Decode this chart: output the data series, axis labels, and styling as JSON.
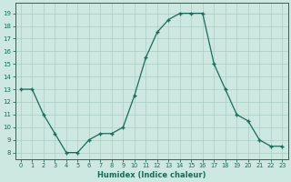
{
  "x": [
    0,
    1,
    2,
    3,
    4,
    5,
    6,
    7,
    8,
    9,
    10,
    11,
    12,
    13,
    14,
    15,
    16,
    17,
    18,
    19,
    20,
    21,
    22,
    23
  ],
  "y": [
    13,
    13,
    11,
    9.5,
    8,
    8,
    9,
    9.5,
    9.5,
    10,
    12.5,
    15.5,
    17.5,
    18.5,
    19,
    19,
    19,
    15,
    13,
    11,
    10.5,
    9,
    8.5,
    8.5
  ],
  "xlabel": "Humidex (Indice chaleur)",
  "xlim": [
    -0.5,
    23.5
  ],
  "ylim": [
    7.5,
    19.8
  ],
  "yticks": [
    8,
    9,
    10,
    11,
    12,
    13,
    14,
    15,
    16,
    17,
    18,
    19
  ],
  "xticks": [
    0,
    1,
    2,
    3,
    4,
    5,
    6,
    7,
    8,
    9,
    10,
    11,
    12,
    13,
    14,
    15,
    16,
    17,
    18,
    19,
    20,
    21,
    22,
    23
  ],
  "line_color": "#1a6b5a",
  "marker_color": "#1a6b5a",
  "bg_color": "#cce8e0",
  "grid_color": "#aaccc4",
  "tick_color": "#1a6b5a",
  "label_color": "#1a6b5a"
}
